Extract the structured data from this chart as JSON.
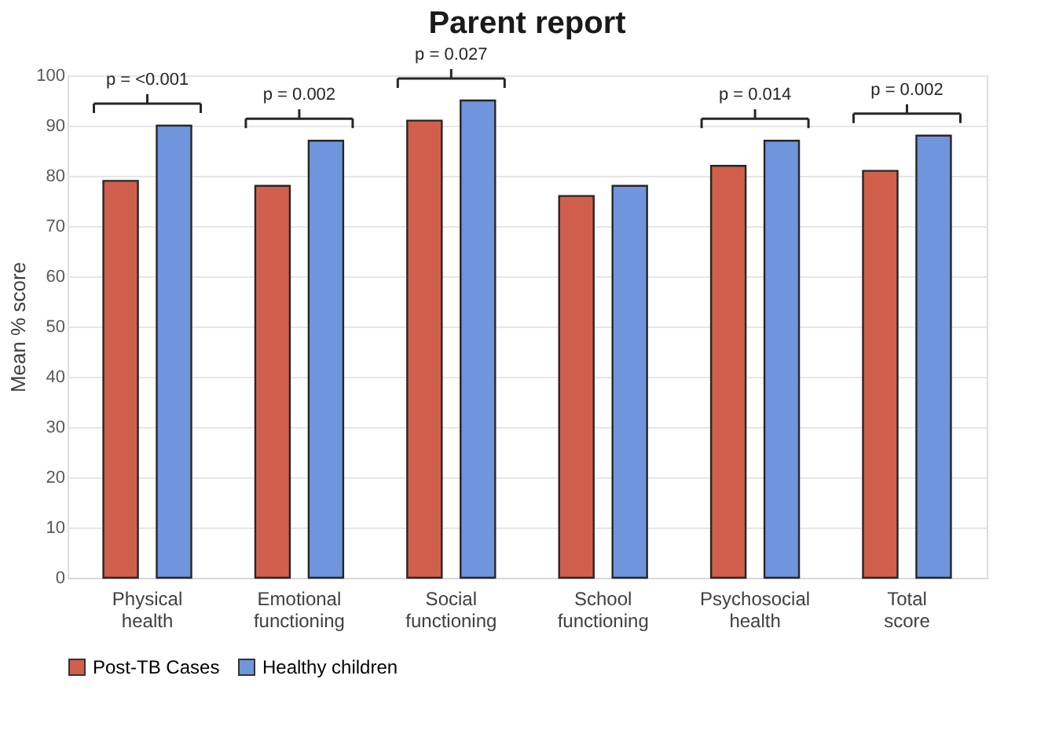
{
  "chart_data": {
    "type": "bar",
    "title": "Parent report",
    "ylabel": "Mean % score",
    "categories": [
      "Physical health",
      "Emotional functioning",
      "Social functioning",
      "School functioning",
      "Psychosocial health",
      "Total score"
    ],
    "series": [
      {
        "name": "Post-TB Cases",
        "color": "#d0604c",
        "values": [
          79,
          78,
          91,
          76,
          82,
          81
        ]
      },
      {
        "name": "Healthy children",
        "color": "#6f96dc",
        "values": [
          90,
          87,
          95,
          78,
          87,
          88
        ]
      }
    ],
    "ylim": [
      0,
      100
    ],
    "yticks": [
      0,
      10,
      20,
      30,
      40,
      50,
      60,
      70,
      80,
      90,
      100
    ],
    "grid": "y",
    "legend": "bottom",
    "annotations": [
      "p = <0.001",
      "p = 0.002",
      "p = 0.027",
      "p = 0.014",
      "p = 0.002"
    ]
  }
}
